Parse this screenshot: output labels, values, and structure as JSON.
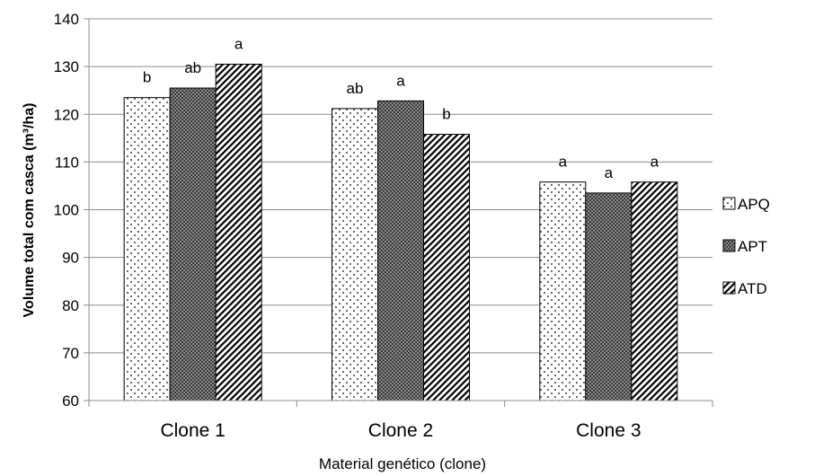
{
  "chart_data": {
    "type": "bar",
    "categories": [
      "Clone 1",
      "Clone 2",
      "Clone 3"
    ],
    "series": [
      {
        "name": "APQ",
        "values": [
          123.5,
          121.2,
          105.8
        ],
        "labels": [
          "b",
          "ab",
          "a"
        ],
        "pattern": "dots"
      },
      {
        "name": "APT",
        "values": [
          125.5,
          122.8,
          103.5
        ],
        "labels": [
          "ab",
          "a",
          "a"
        ],
        "pattern": "crosshatch"
      },
      {
        "name": "ATD",
        "values": [
          130.5,
          115.8,
          105.8
        ],
        "labels": [
          "a",
          "b",
          "a"
        ],
        "pattern": "diagonal"
      }
    ],
    "xlabel": "Material genético (clone)",
    "ylabel": "Volume total com casca  (m³/ha)",
    "ylim": [
      60,
      140
    ],
    "yticks": [
      60,
      70,
      80,
      90,
      100,
      110,
      120,
      130,
      140
    ],
    "grid": true,
    "legend": "right"
  }
}
